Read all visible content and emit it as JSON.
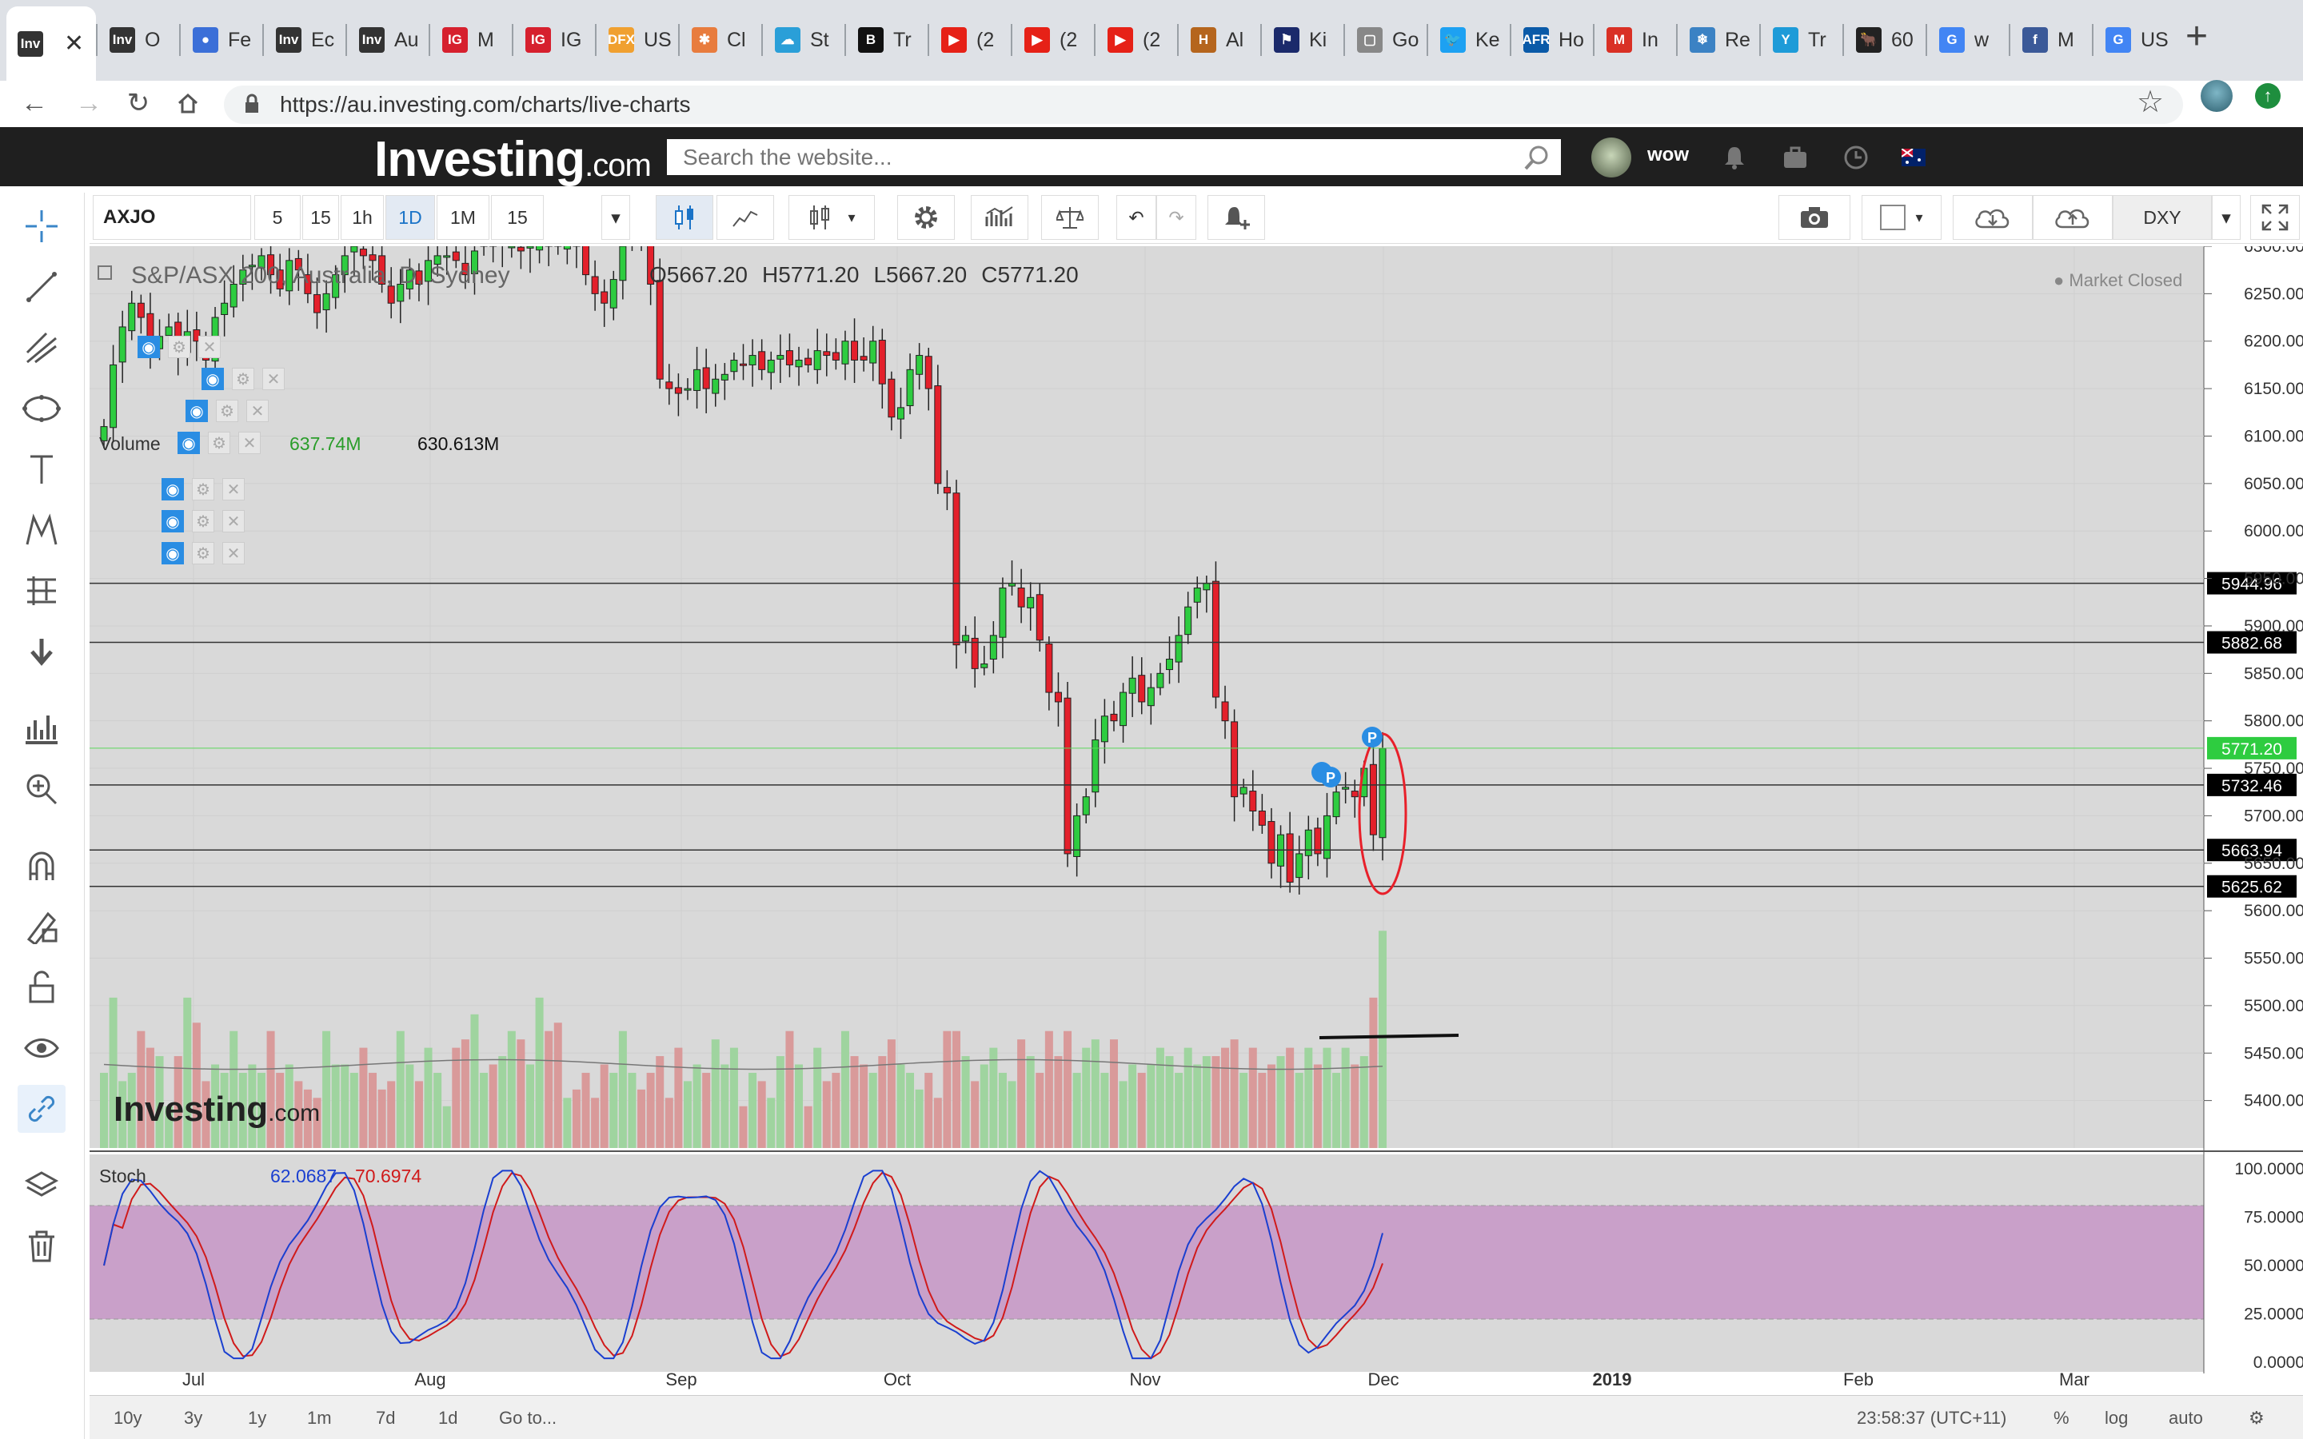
{
  "browser": {
    "tabs": [
      {
        "label": "",
        "fav": "Inv",
        "favcolor": "#333",
        "active": true
      },
      {
        "label": "O",
        "fav": "Inv",
        "favcolor": "#333"
      },
      {
        "label": "Fe",
        "fav": "●",
        "favcolor": "#3b6fd8"
      },
      {
        "label": "Ec",
        "fav": "Inv",
        "favcolor": "#333"
      },
      {
        "label": "Au",
        "fav": "Inv",
        "favcolor": "#333"
      },
      {
        "label": "M",
        "fav": "IG",
        "favcolor": "#d6202e"
      },
      {
        "label": "IG",
        "fav": "IG",
        "favcolor": "#d6202e"
      },
      {
        "label": "US",
        "fav": "DFX",
        "favcolor": "#f0a030"
      },
      {
        "label": "Cl",
        "fav": "✱",
        "favcolor": "#e87c3e"
      },
      {
        "label": "St",
        "fav": "☁",
        "favcolor": "#2a9fd8"
      },
      {
        "label": "Tr",
        "fav": "B",
        "favcolor": "#111"
      },
      {
        "label": "(2",
        "fav": "▶",
        "favcolor": "#e62117"
      },
      {
        "label": "(2",
        "fav": "▶",
        "favcolor": "#e62117"
      },
      {
        "label": "(2",
        "fav": "▶",
        "favcolor": "#e62117"
      },
      {
        "label": "Al",
        "fav": "H",
        "favcolor": "#b5651d"
      },
      {
        "label": "Ki",
        "fav": "⚑",
        "favcolor": "#1b2a6b"
      },
      {
        "label": "Go",
        "fav": "▢",
        "favcolor": "#888"
      },
      {
        "label": "Ke",
        "fav": "🐦",
        "favcolor": "#1da1f2"
      },
      {
        "label": "Ho",
        "fav": "AFR",
        "favcolor": "#0a5aa8"
      },
      {
        "label": "In",
        "fav": "M",
        "favcolor": "#d93025"
      },
      {
        "label": "Re",
        "fav": "❄",
        "favcolor": "#3b82c4"
      },
      {
        "label": "Tr",
        "fav": "Y",
        "favcolor": "#1d9bd8"
      },
      {
        "label": "60",
        "fav": "🐂",
        "favcolor": "#222"
      },
      {
        "label": "w",
        "fav": "G",
        "favcolor": "#4285f4"
      },
      {
        "label": "M",
        "fav": "f",
        "favcolor": "#3b5998"
      },
      {
        "label": "US",
        "fav": "G",
        "favcolor": "#4285f4"
      }
    ],
    "close_glyph": "✕",
    "newtab_glyph": "+",
    "url": "https://au.investing.com/charts/live-charts"
  },
  "site": {
    "logo_main": "Investing",
    "logo_suffix": ".com",
    "search_placeholder": "Search the website...",
    "username": "wow"
  },
  "toolbar": {
    "symbol": "AXJO",
    "intervals": [
      "5",
      "15",
      "1h",
      "1D",
      "1M",
      "15"
    ],
    "selected_interval": "1D",
    "index_label": "DXY"
  },
  "chart": {
    "title": "S&P/ASX 200, Australia, D, Sydney",
    "ohlc": {
      "o": "O5667.20",
      "h": "H5771.20",
      "l": "L5667.20",
      "c": "C5771.20"
    },
    "market_status": "Market Closed",
    "volume_label": "Volume",
    "volume_v1": "637.74M",
    "volume_v2": "630.613M",
    "stoch_label": "Stoch",
    "stoch_v1": "62.0687",
    "stoch_v2": "70.6974",
    "watermark": "Investing",
    "watermark_suffix": ".com"
  },
  "chart_data": {
    "type": "candlestick",
    "ylim": [
      5350,
      6300
    ],
    "y_ticks": [
      6300,
      6250,
      6200,
      6150,
      6100,
      6050,
      6000,
      5950,
      5900,
      5850,
      5800,
      5750,
      5700,
      5650,
      5600,
      5550,
      5500,
      5450,
      5400
    ],
    "price_labels": [
      {
        "value": 5944.96,
        "label": "5944.96",
        "color": "#000"
      },
      {
        "value": 5882.68,
        "label": "5882.68",
        "color": "#000"
      },
      {
        "value": 5771.2,
        "label": "5771.20",
        "color": "#2ecc40"
      },
      {
        "value": 5732.46,
        "label": "5732.46",
        "color": "#000"
      },
      {
        "value": 5663.94,
        "label": "5663.94",
        "color": "#000"
      },
      {
        "value": 5625.62,
        "label": "5625.62",
        "color": "#000"
      }
    ],
    "x_labels": [
      "Jul",
      "Aug",
      "Sep",
      "Oct",
      "Nov",
      "Dec",
      "2019",
      "Feb",
      "Mar"
    ],
    "stoch_ticks": [
      "100.0000",
      "75.0000",
      "50.0000",
      "25.0000",
      "0.0000"
    ],
    "stoch_band": [
      20,
      80
    ],
    "closes": [
      6110,
      6175,
      6215,
      6240,
      6225,
      6195,
      6205,
      6215,
      6190,
      6210,
      6200,
      6180,
      6225,
      6240,
      6260,
      6275,
      6280,
      6290,
      6270,
      6255,
      6285,
      6275,
      6250,
      6230,
      6250,
      6270,
      6290,
      6300,
      6290,
      6285,
      6260,
      6240,
      6260,
      6275,
      6260,
      6285,
      6290,
      6290,
      6285,
      6270,
      6295,
      6305,
      6300,
      6305,
      6300,
      6295,
      6300,
      6305,
      6300,
      6300,
      6310,
      6300,
      6270,
      6250,
      6240,
      6265,
      6300,
      6320,
      6310,
      6260,
      6160,
      6150,
      6145,
      6150,
      6170,
      6150,
      6160,
      6165,
      6180,
      6175,
      6185,
      6170,
      6180,
      6185,
      6175,
      6180,
      6175,
      6190,
      6185,
      6180,
      6200,
      6180,
      6180,
      6200,
      6155,
      6120,
      6130,
      6170,
      6185,
      6150,
      6050,
      6040,
      5880,
      5890,
      5855,
      5860,
      5890,
      5940,
      5945,
      5920,
      5930,
      5885,
      5830,
      5820,
      5660,
      5700,
      5720,
      5780,
      5805,
      5800,
      5830,
      5845,
      5820,
      5835,
      5850,
      5865,
      5890,
      5920,
      5940,
      5945,
      5825,
      5800,
      5720,
      5730,
      5705,
      5690,
      5650,
      5680,
      5630,
      5660,
      5685,
      5660,
      5700,
      5725,
      5730,
      5720,
      5750,
      5680,
      5771
    ],
    "volumes": [
      470,
      560,
      460,
      470,
      520,
      500,
      490,
      430,
      490,
      560,
      530,
      460,
      480,
      470,
      520,
      470,
      480,
      470,
      520,
      470,
      480,
      460,
      450,
      440,
      520,
      480,
      480,
      470,
      500,
      470,
      450,
      460,
      520,
      480,
      460,
      500,
      470,
      430,
      500,
      510,
      540,
      470,
      480,
      490,
      520,
      510,
      480,
      560,
      520,
      530,
      440,
      450,
      470,
      440,
      480,
      470,
      520,
      470,
      450,
      470,
      490,
      440,
      500,
      460,
      480,
      470,
      510,
      480,
      500,
      430,
      470,
      460,
      440,
      490,
      520,
      480,
      430,
      500,
      460,
      470,
      520,
      490,
      480,
      470,
      490,
      510,
      480,
      470,
      450,
      470,
      440,
      520,
      520,
      490,
      460,
      480,
      500,
      470,
      460,
      510,
      490,
      470,
      520,
      490,
      520,
      470,
      500,
      510,
      470,
      510,
      460,
      480,
      470,
      480,
      500,
      490,
      470,
      500,
      480,
      490,
      490,
      500,
      510,
      470,
      500,
      470,
      480,
      490,
      500,
      470,
      500,
      480,
      500,
      470,
      500,
      480,
      490,
      560,
      640
    ]
  }
}
